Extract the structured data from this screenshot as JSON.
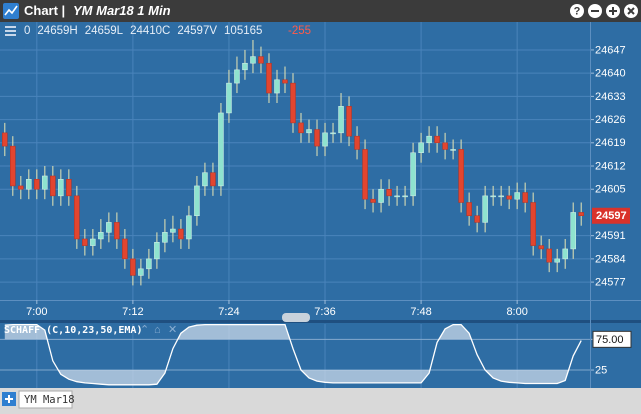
{
  "header": {
    "title": "Chart |",
    "instrument": "YM Mar18 1 Min",
    "info": [
      "0",
      "24659H",
      "24659L",
      "24410C",
      "24597V",
      "105165"
    ],
    "change": "-255"
  },
  "footer": {
    "tab": "YM Mar18"
  },
  "chart_data": [
    {
      "type": "candlestick",
      "x": [
        416,
        417,
        418,
        419,
        420,
        421,
        422,
        423,
        424,
        425,
        426,
        427,
        428,
        429,
        430,
        431,
        432,
        433,
        434,
        435,
        436,
        437,
        438,
        439,
        440,
        441,
        442,
        443,
        444,
        445,
        446,
        447,
        448,
        449,
        450,
        451,
        452,
        453,
        454,
        455,
        456,
        457,
        458,
        459,
        460,
        461,
        462,
        463,
        464,
        465,
        466,
        467,
        468,
        469,
        470,
        471,
        472,
        473,
        474,
        475,
        476,
        477,
        478,
        479,
        480,
        481,
        482,
        483,
        484,
        485,
        486,
        487,
        488
      ],
      "open": [
        24622,
        24618,
        24606,
        24605,
        24608,
        24605,
        24609,
        24603,
        24608,
        24603,
        24590,
        24588,
        24590,
        24592,
        24595,
        24590,
        24584,
        24579,
        24581,
        24584,
        24589,
        24592,
        24593,
        24590,
        24597,
        24606,
        24610,
        24606,
        24628,
        24637,
        24641,
        24643,
        24645,
        24643,
        24634,
        24638,
        24637,
        24625,
        24622,
        24623,
        24618,
        24622,
        24622,
        24630,
        24621,
        24617,
        24602,
        24601,
        24605,
        24603,
        24603,
        24603,
        24616,
        24619,
        24621,
        24619,
        24617,
        24617,
        24601,
        24597,
        24595,
        24603,
        24603,
        24603,
        24602,
        24604,
        24601,
        24588,
        24587,
        24583,
        24584,
        24587,
        24598
      ],
      "high": [
        24625,
        24621,
        24609,
        24611,
        24611,
        24612,
        24612,
        24611,
        24611,
        24606,
        24593,
        24593,
        24596,
        24598,
        24598,
        24593,
        24587,
        24584,
        24587,
        24592,
        24596,
        24597,
        24596,
        24600,
        24609,
        24613,
        24613,
        24631,
        24641,
        24645,
        24647,
        24650,
        24648,
        24646,
        24641,
        24642,
        24640,
        24628,
        24626,
        24626,
        24625,
        24625,
        24634,
        24633,
        24624,
        24620,
        24605,
        24608,
        24608,
        24606,
        24606,
        24619,
        24622,
        24624,
        24624,
        24622,
        24620,
        24620,
        24604,
        24600,
        24606,
        24606,
        24606,
        24606,
        24607,
        24607,
        24604,
        24591,
        24590,
        24587,
        24590,
        24601,
        24601
      ],
      "low": [
        24615,
        24603,
        24602,
        24602,
        24602,
        24602,
        24600,
        24600,
        24600,
        24587,
        24585,
        24585,
        24587,
        24589,
        24587,
        24581,
        24576,
        24576,
        24578,
        24581,
        24586,
        24589,
        24587,
        24587,
        24594,
        24603,
        24603,
        24603,
        24625,
        24634,
        24638,
        24640,
        24640,
        24631,
        24631,
        24634,
        24622,
        24619,
        24619,
        24615,
        24615,
        24619,
        24619,
        24618,
        24614,
        24599,
        24598,
        24598,
        24600,
        24600,
        24600,
        24600,
        24613,
        24616,
        24616,
        24614,
        24614,
        24598,
        24594,
        24592,
        24592,
        24600,
        24600,
        24599,
        24599,
        24598,
        24585,
        24584,
        24580,
        24580,
        24581,
        24584,
        24594
      ],
      "close": [
        24618,
        24606,
        24605,
        24608,
        24605,
        24609,
        24603,
        24608,
        24603,
        24590,
        24588,
        24590,
        24592,
        24595,
        24590,
        24584,
        24579,
        24581,
        24584,
        24589,
        24592,
        24593,
        24590,
        24597,
        24606,
        24610,
        24606,
        24628,
        24637,
        24641,
        24643,
        24645,
        24643,
        24634,
        24638,
        24637,
        24625,
        24622,
        24623,
        24618,
        24622,
        24622,
        24630,
        24621,
        24617,
        24602,
        24601,
        24605,
        24603,
        24603,
        24603,
        24616,
        24619,
        24621,
        24619,
        24617,
        24617,
        24601,
        24597,
        24595,
        24603,
        24603,
        24603,
        24602,
        24604,
        24601,
        24588,
        24587,
        24583,
        24584,
        24587,
        24598,
        24597
      ],
      "up_color": "#8fe3cf",
      "down_color": "#e2452f",
      "wick_color": "#e9e7b4",
      "last_color": "#d9332b",
      "xlim": [
        415.4,
        489.1
      ],
      "xticks": [
        {
          "value": 420,
          "label": "7:00"
        },
        {
          "value": 432,
          "label": "7:12"
        },
        {
          "value": 444,
          "label": "7:24"
        },
        {
          "value": 456,
          "label": "7:36"
        },
        {
          "value": 468,
          "label": "7:48"
        },
        {
          "value": 480,
          "label": "8:00"
        }
      ],
      "ylim": [
        24571.6,
        24650.6
      ],
      "yticks": [
        24577,
        24584,
        24591,
        24605,
        24612,
        24619,
        24626,
        24633,
        24640,
        24647
      ],
      "grid": true
    },
    {
      "type": "line",
      "title": "SCHAFF (C,10,23,50,EMA)",
      "x": [
        416,
        417,
        418,
        419,
        420,
        421,
        422,
        423,
        424,
        425,
        426,
        427,
        428,
        429,
        430,
        431,
        432,
        433,
        434,
        435,
        436,
        437,
        438,
        439,
        440,
        441,
        442,
        443,
        444,
        445,
        446,
        447,
        448,
        449,
        450,
        451,
        452,
        453,
        454,
        455,
        456,
        457,
        458,
        459,
        460,
        461,
        462,
        463,
        464,
        465,
        466,
        467,
        468,
        469,
        470,
        471,
        472,
        473,
        474,
        475,
        476,
        477,
        478,
        479,
        480,
        481,
        482,
        483,
        484,
        485,
        486,
        487,
        488
      ],
      "values": [
        98,
        99,
        99,
        99,
        99,
        90,
        40,
        18,
        10,
        6,
        4,
        3,
        2,
        1,
        1,
        1,
        1,
        1,
        1,
        2,
        20,
        60,
        85,
        95,
        98,
        99,
        99,
        99,
        99,
        99,
        99,
        99,
        99,
        99,
        99,
        99,
        60,
        25,
        12,
        7,
        5,
        4,
        4,
        4,
        4,
        4,
        4,
        4,
        4,
        4,
        4,
        4,
        4,
        20,
        70,
        92,
        99,
        99,
        85,
        50,
        25,
        12,
        7,
        5,
        4,
        3,
        3,
        3,
        3,
        3,
        8,
        48,
        73
      ],
      "color": "#ffffff",
      "fill_color": "#c9d8e8",
      "xlim": [
        415.4,
        489.1
      ],
      "ylim": [
        -1,
        100
      ],
      "yticks": [
        {
          "value": 75,
          "label": "75.00"
        },
        25
      ],
      "grid": true
    }
  ]
}
